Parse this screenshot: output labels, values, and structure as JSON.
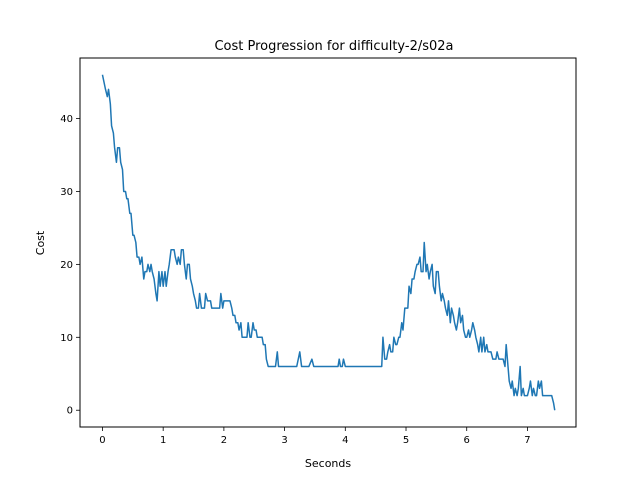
{
  "chart_data": {
    "type": "line",
    "title": "Cost Progression for difficulty-2/s02a",
    "xlabel": "Seconds",
    "ylabel": "Cost",
    "xlim": [
      -0.37,
      7.8
    ],
    "ylim": [
      -2.3,
      48.3
    ],
    "xticks": [
      0,
      1,
      2,
      3,
      4,
      5,
      6,
      7
    ],
    "yticks": [
      0,
      10,
      20,
      30,
      40
    ],
    "grid": false,
    "legend": "none",
    "series": [
      {
        "color": "#1f77b4",
        "x": [
          0.0,
          0.05,
          0.08,
          0.1,
          0.13,
          0.15,
          0.18,
          0.2,
          0.23,
          0.25,
          0.28,
          0.3,
          0.33,
          0.35,
          0.38,
          0.4,
          0.42,
          0.45,
          0.47,
          0.5,
          0.52,
          0.55,
          0.57,
          0.6,
          0.62,
          0.65,
          0.68,
          0.7,
          0.73,
          0.75,
          0.78,
          0.8,
          0.82,
          0.85,
          0.88,
          0.9,
          0.93,
          0.95,
          0.98,
          1.0,
          1.03,
          1.05,
          1.08,
          1.1,
          1.13,
          1.15,
          1.18,
          1.2,
          1.23,
          1.25,
          1.28,
          1.3,
          1.33,
          1.35,
          1.38,
          1.4,
          1.43,
          1.45,
          1.48,
          1.5,
          1.53,
          1.55,
          1.58,
          1.6,
          1.63,
          1.65,
          1.68,
          1.7,
          1.73,
          1.75,
          1.78,
          1.8,
          1.83,
          1.85,
          1.88,
          1.9,
          1.93,
          1.95,
          1.98,
          2.0,
          2.03,
          2.05,
          2.08,
          2.1,
          2.13,
          2.15,
          2.18,
          2.2,
          2.23,
          2.25,
          2.28,
          2.3,
          2.33,
          2.35,
          2.38,
          2.4,
          2.43,
          2.45,
          2.48,
          2.5,
          2.53,
          2.55,
          2.58,
          2.6,
          2.63,
          2.65,
          2.68,
          2.7,
          2.73,
          2.75,
          2.78,
          2.8,
          2.83,
          2.85,
          2.88,
          2.9,
          2.93,
          2.95,
          2.98,
          3.0,
          3.1,
          3.2,
          3.25,
          3.28,
          3.3,
          3.4,
          3.45,
          3.48,
          3.5,
          3.6,
          3.7,
          3.8,
          3.88,
          3.9,
          3.92,
          3.95,
          3.97,
          4.0,
          4.2,
          4.4,
          4.58,
          4.6,
          4.62,
          4.65,
          4.68,
          4.7,
          4.73,
          4.75,
          4.78,
          4.8,
          4.83,
          4.85,
          4.88,
          4.9,
          4.93,
          4.95,
          4.98,
          5.0,
          5.03,
          5.05,
          5.08,
          5.1,
          5.13,
          5.15,
          5.18,
          5.2,
          5.23,
          5.25,
          5.28,
          5.3,
          5.33,
          5.35,
          5.38,
          5.4,
          5.43,
          5.45,
          5.48,
          5.5,
          5.53,
          5.55,
          5.58,
          5.6,
          5.63,
          5.65,
          5.68,
          5.7,
          5.73,
          5.75,
          5.78,
          5.8,
          5.83,
          5.85,
          5.88,
          5.9,
          5.93,
          5.95,
          5.98,
          6.0,
          6.03,
          6.05,
          6.08,
          6.1,
          6.13,
          6.15,
          6.18,
          6.2,
          6.23,
          6.25,
          6.28,
          6.3,
          6.33,
          6.35,
          6.38,
          6.4,
          6.43,
          6.45,
          6.48,
          6.5,
          6.53,
          6.55,
          6.58,
          6.6,
          6.63,
          6.65,
          6.68,
          6.7,
          6.73,
          6.75,
          6.78,
          6.8,
          6.83,
          6.85,
          6.88,
          6.9,
          6.93,
          6.95,
          6.98,
          7.0,
          7.03,
          7.05,
          7.08,
          7.1,
          7.13,
          7.15,
          7.18,
          7.2,
          7.23,
          7.25,
          7.3,
          7.35,
          7.4,
          7.43,
          7.45
        ],
        "y": [
          46,
          44,
          43,
          44,
          42,
          39,
          38,
          36,
          34,
          36,
          36,
          34,
          33,
          30,
          30,
          29,
          29,
          27,
          27,
          24,
          24,
          23,
          21,
          21,
          20,
          21,
          18,
          19,
          19,
          20,
          19,
          20,
          19,
          18,
          16,
          15,
          19,
          17,
          19,
          17,
          19,
          17,
          19,
          20,
          22,
          22,
          22,
          21,
          20,
          21,
          20,
          22,
          22,
          20,
          18,
          20,
          20,
          18,
          17,
          16,
          15,
          14,
          14,
          16,
          14,
          14,
          14,
          16,
          15,
          15,
          15,
          14,
          14,
          14,
          14,
          14,
          14,
          16,
          14,
          15,
          15,
          15,
          15,
          15,
          14,
          13,
          13,
          12,
          12,
          11,
          12,
          10,
          10,
          10,
          10,
          12,
          10,
          10,
          12,
          11,
          11,
          10,
          10,
          10,
          10,
          9,
          9,
          7,
          6,
          6,
          6,
          6,
          6,
          6,
          8,
          6,
          6,
          6,
          6,
          6,
          6,
          6,
          8,
          6,
          6,
          6,
          7,
          6,
          6,
          6,
          6,
          6,
          6,
          7,
          6,
          6,
          7,
          6,
          6,
          6,
          6,
          6,
          10,
          7,
          7,
          8,
          9,
          8,
          8,
          10,
          9,
          9,
          10,
          10,
          12,
          11,
          14,
          14,
          14,
          17,
          16,
          18,
          18,
          19,
          20,
          20,
          21,
          19,
          19,
          23,
          19,
          20,
          18,
          19,
          20,
          17,
          16,
          19,
          19,
          17,
          15,
          16,
          15,
          14,
          13,
          15,
          12,
          14,
          13,
          12,
          11,
          12,
          14,
          12,
          13,
          11,
          10,
          10,
          11,
          10,
          11,
          12,
          11,
          10,
          9,
          8,
          10,
          8,
          10,
          8,
          9,
          8,
          8,
          8,
          7,
          7,
          7,
          8,
          7,
          7,
          7,
          7,
          6,
          9,
          6,
          4,
          3,
          4,
          2,
          3,
          2,
          3,
          6,
          2,
          3,
          2,
          2,
          2,
          3,
          4,
          2,
          3,
          2,
          2,
          4,
          3,
          4,
          2,
          2,
          2,
          2,
          1,
          0
        ]
      }
    ]
  }
}
